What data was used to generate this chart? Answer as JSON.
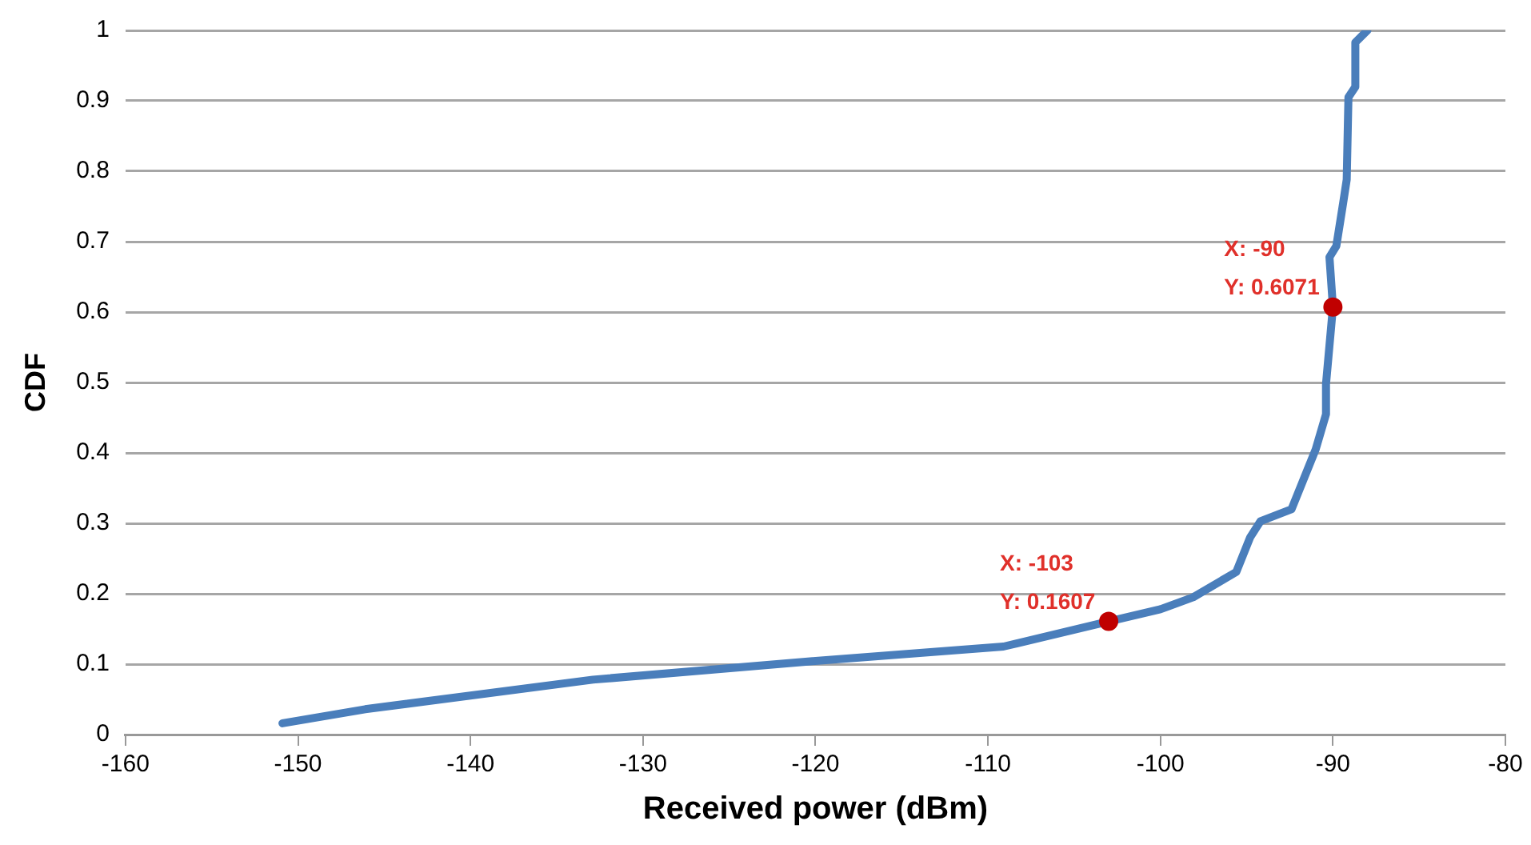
{
  "chart_data": {
    "type": "line",
    "xlabel": "Received power (dBm)",
    "ylabel": "CDF",
    "xlim": [
      -160,
      -80
    ],
    "xticks": [
      -160,
      -150,
      -140,
      -130,
      -120,
      -110,
      -100,
      -90,
      -80
    ],
    "ylim": [
      0,
      1
    ],
    "yticks": [
      0,
      0.1,
      0.2,
      0.3,
      0.4,
      0.5,
      0.6,
      0.7,
      0.8,
      0.9,
      1
    ],
    "grid": "y",
    "legend": false,
    "marker": "none",
    "line_style": "solid",
    "series": [
      {
        "color": "#4a7ebb",
        "x": [
          -150.9,
          -146.1,
          -132.9,
          -120.3,
          -109.1,
          -103,
          -100,
          -98.1,
          -95.6,
          -94.8,
          -94.2,
          -92.4,
          -91,
          -90.4,
          -90.4,
          -90,
          -90.2,
          -89.8,
          -89.4,
          -89.2,
          -89.1,
          -88.7,
          -88.7,
          -88
        ],
        "values": [
          0.016,
          0.036,
          0.078,
          0.104,
          0.125,
          0.1607,
          0.178,
          0.195,
          0.231,
          0.28,
          0.303,
          0.32,
          0.405,
          0.455,
          0.498,
          0.6071,
          0.678,
          0.694,
          0.756,
          0.788,
          0.905,
          0.92,
          0.983,
          1
        ]
      },
      {
        "type": "scatter",
        "color": "#c00000",
        "marker": "circle",
        "x": [
          -103,
          -90
        ],
        "values": [
          0.1607,
          0.6071
        ]
      }
    ],
    "annotations": [
      {
        "text": "X: -103\nY: 0.1607",
        "x": -103,
        "y": 0.1607
      },
      {
        "text": "X: -90\nY: 0.6071",
        "x": -90,
        "y": 0.6071
      }
    ]
  }
}
